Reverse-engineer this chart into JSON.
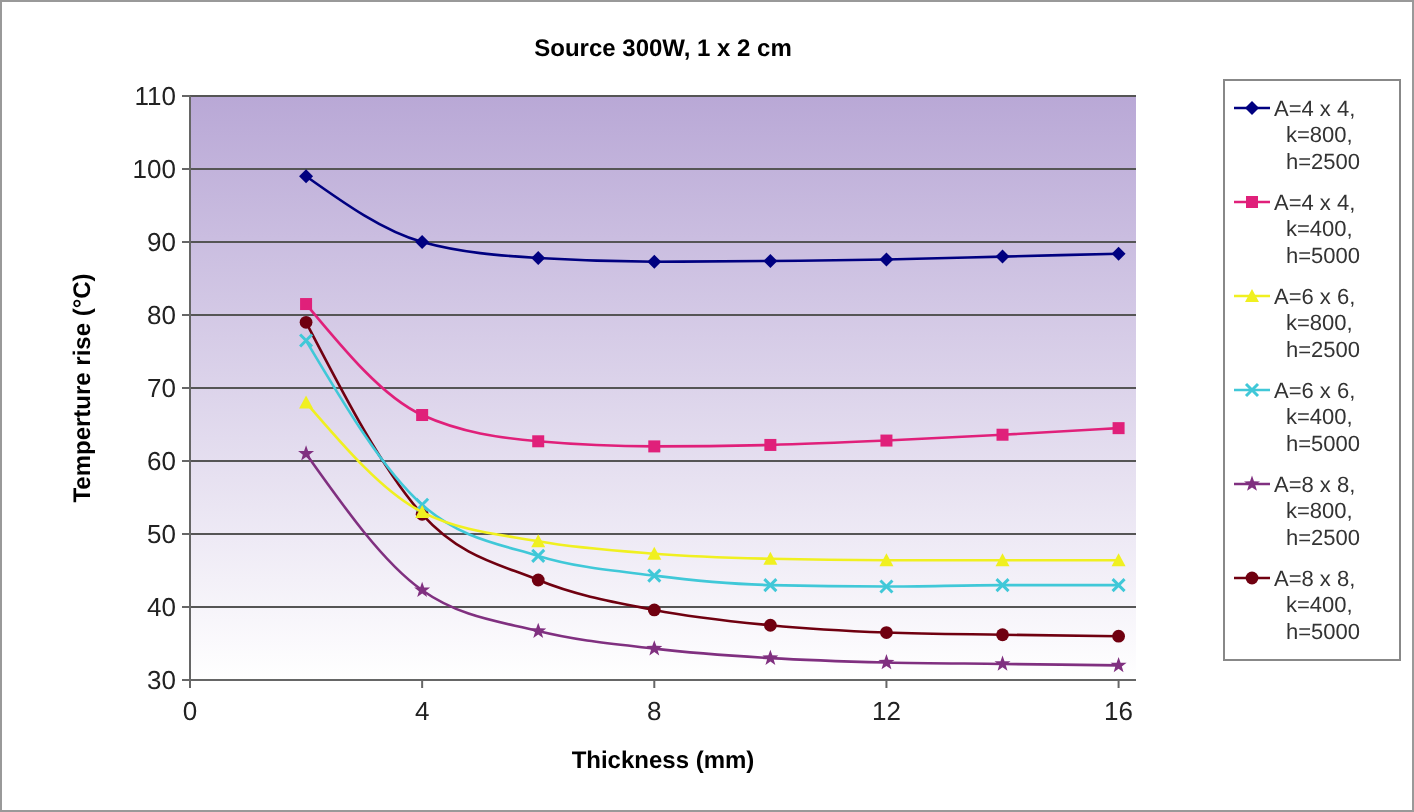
{
  "chart_data": {
    "type": "line",
    "title": "Source 300W, 1 x 2 cm",
    "xlabel": "Thickness (mm)",
    "ylabel": "Temperture rise (°C)",
    "x": [
      2,
      4,
      6,
      8,
      10,
      12,
      14,
      16
    ],
    "xlim": [
      0,
      16.3
    ],
    "xticks": [
      0,
      4,
      8,
      12,
      16
    ],
    "ylim": [
      30,
      110
    ],
    "yticks": [
      30,
      40,
      50,
      60,
      70,
      80,
      90,
      100,
      110
    ],
    "grid": "y",
    "legend": "right",
    "series": [
      {
        "name": "A=4 x 4, k=800, h=2500",
        "color": "#000080",
        "marker": "diamond",
        "values": [
          99,
          90,
          87.8,
          87.3,
          87.4,
          87.6,
          88,
          88.4
        ]
      },
      {
        "name": "A=4 x 4, k=400, h=5000",
        "color": "#e0207a",
        "marker": "square",
        "values": [
          81.5,
          66.3,
          62.7,
          62,
          62.2,
          62.8,
          63.6,
          64.5
        ]
      },
      {
        "name": "A=6 x 6, k=800, h=2500",
        "color": "#f0f020",
        "marker": "triangle",
        "values": [
          68,
          53,
          49,
          47.3,
          46.6,
          46.4,
          46.4,
          46.4
        ]
      },
      {
        "name": "A=6 x 6, k=400, h=5000",
        "color": "#40c8d8",
        "marker": "cross",
        "values": [
          76.5,
          54,
          47,
          44.3,
          43,
          42.8,
          43,
          43
        ]
      },
      {
        "name": "A=8 x 8, k=800, h=2500",
        "color": "#803080",
        "marker": "star",
        "values": [
          61,
          42.3,
          36.7,
          34.3,
          33,
          32.4,
          32.2,
          32
        ]
      },
      {
        "name": "A=8 x 8, k=400, h=5000",
        "color": "#700010",
        "marker": "circle",
        "values": [
          79,
          52.7,
          43.7,
          39.6,
          37.5,
          36.5,
          36.2,
          36
        ]
      }
    ]
  }
}
